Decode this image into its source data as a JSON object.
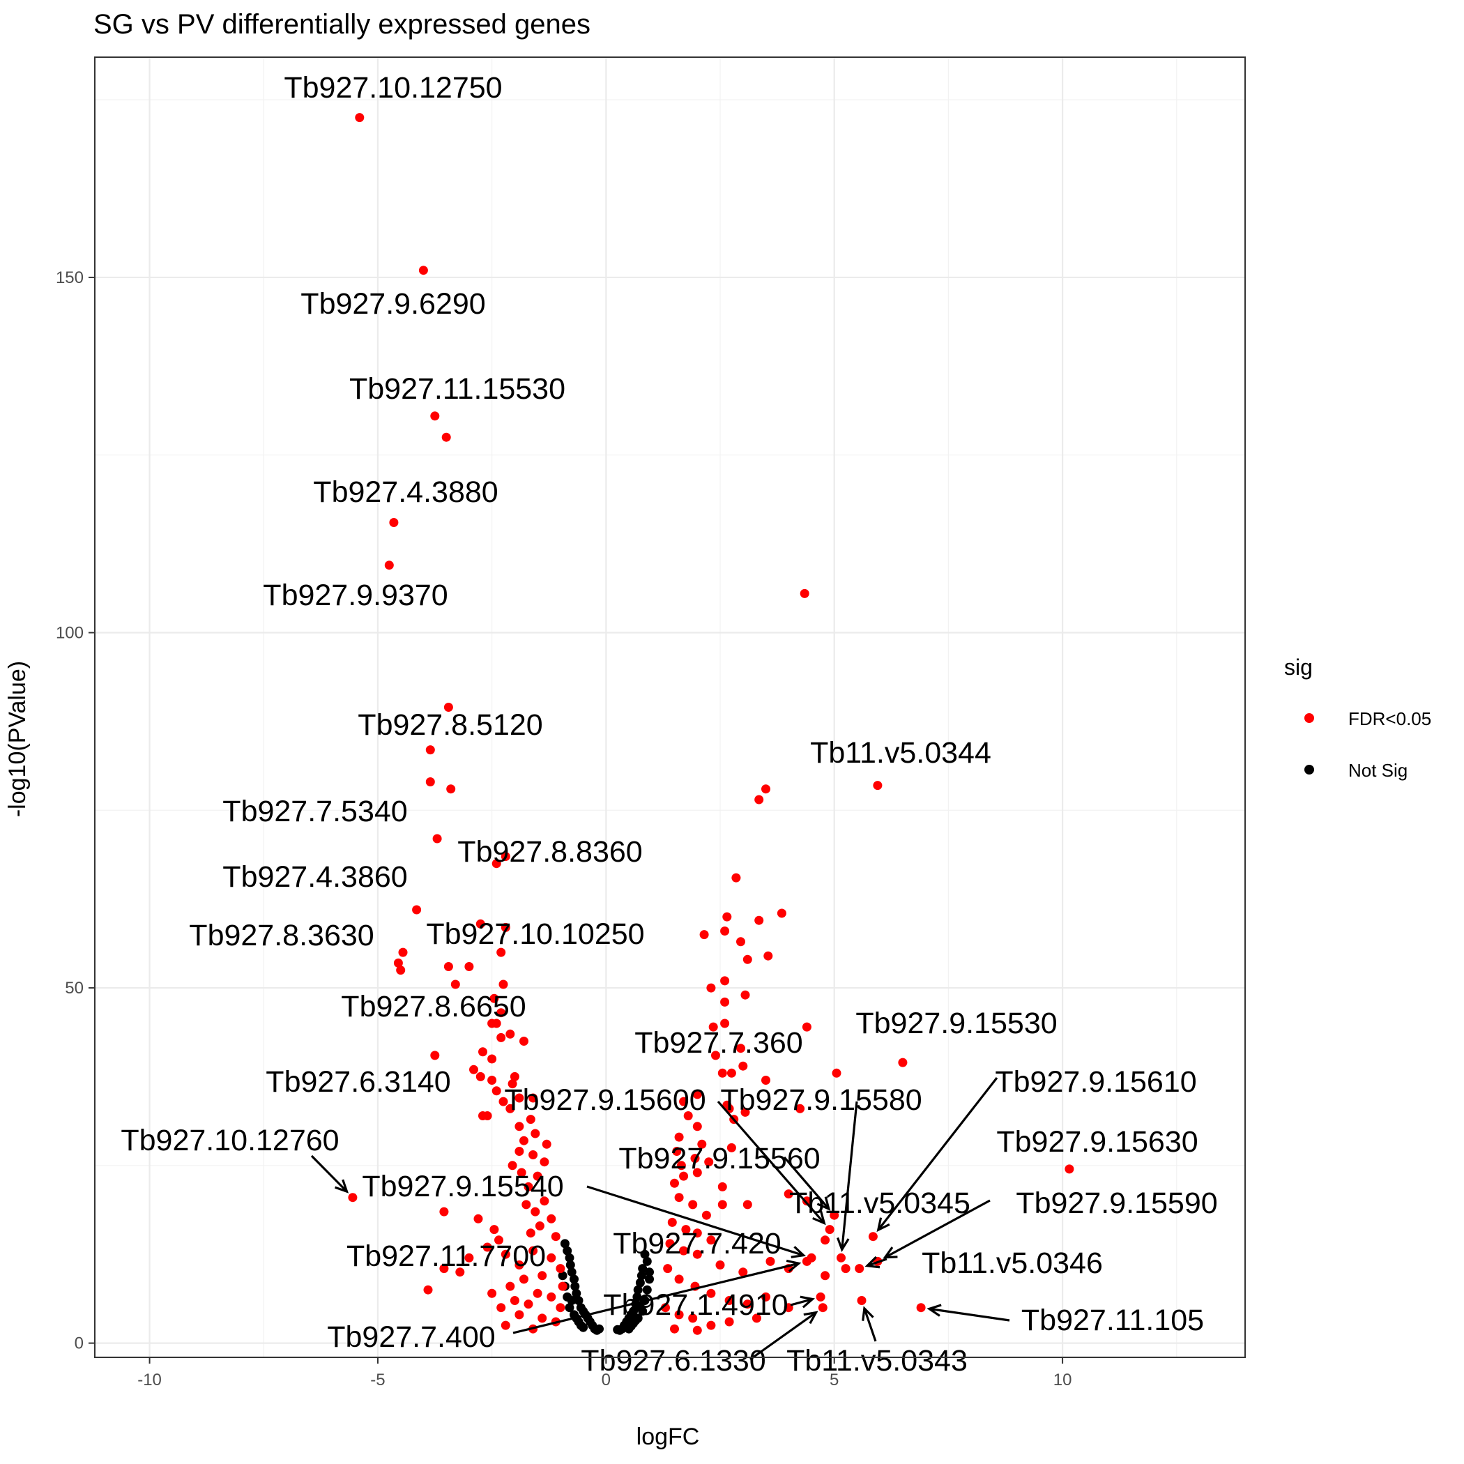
{
  "chart_data": {
    "type": "scatter",
    "title": "SG vs PV differentially expressed genes",
    "xlabel": "logFC",
    "ylabel": "-log10(PValue)",
    "xlim": [
      -11.2,
      14.0
    ],
    "ylim": [
      -2.0,
      181.0
    ],
    "xticks": [
      -10,
      -5,
      0,
      5,
      10
    ],
    "xtick_labels": [
      "-10",
      "-5",
      "0",
      "5",
      "10"
    ],
    "yticks": [
      0,
      50,
      100,
      150
    ],
    "ytick_labels": [
      "0",
      "50",
      "100",
      "150"
    ],
    "grid": true,
    "legend": {
      "title": "sig",
      "placement": "right",
      "entries": [
        {
          "label": "FDR<0.05",
          "color": "#ff0000"
        },
        {
          "label": "Not Sig",
          "color": "#000000"
        }
      ]
    },
    "colors": {
      "sig": "#ff0000",
      "notsig": "#000000"
    },
    "series": [
      {
        "name": "FDR<0.05",
        "color": "#ff0000",
        "points": [
          [
            -5.4,
            172.5
          ],
          [
            -4.0,
            151.0
          ],
          [
            -3.75,
            130.5
          ],
          [
            -3.5,
            127.5
          ],
          [
            -4.65,
            115.5
          ],
          [
            -4.75,
            109.5
          ],
          [
            4.35,
            105.5
          ],
          [
            -3.45,
            89.5
          ],
          [
            -3.85,
            83.5
          ],
          [
            -3.85,
            79.0
          ],
          [
            -3.4,
            78.0
          ],
          [
            5.95,
            78.5
          ],
          [
            3.5,
            78.0
          ],
          [
            3.35,
            76.5
          ],
          [
            -3.7,
            71.0
          ],
          [
            -2.4,
            67.5
          ],
          [
            -2.2,
            68.5
          ],
          [
            2.85,
            65.5
          ],
          [
            -4.15,
            61.0
          ],
          [
            3.85,
            60.5
          ],
          [
            2.65,
            60.0
          ],
          [
            2.6,
            58.0
          ],
          [
            3.35,
            59.5
          ],
          [
            -2.75,
            59.0
          ],
          [
            -2.2,
            58.5
          ],
          [
            2.15,
            57.5
          ],
          [
            2.95,
            56.5
          ],
          [
            -4.45,
            55.0
          ],
          [
            -4.55,
            53.5
          ],
          [
            -4.5,
            52.5
          ],
          [
            -3.45,
            53.0
          ],
          [
            -3.0,
            53.0
          ],
          [
            -2.3,
            55.0
          ],
          [
            3.1,
            54.0
          ],
          [
            3.55,
            54.5
          ],
          [
            2.6,
            51.0
          ],
          [
            2.3,
            50.0
          ],
          [
            3.05,
            49.0
          ],
          [
            -2.25,
            50.5
          ],
          [
            -3.3,
            50.5
          ],
          [
            -2.45,
            48.5
          ],
          [
            2.6,
            48.0
          ],
          [
            -2.3,
            46.5
          ],
          [
            -2.4,
            45.0
          ],
          [
            -2.5,
            45.0
          ],
          [
            2.6,
            45.0
          ],
          [
            2.35,
            44.5
          ],
          [
            4.4,
            44.5
          ],
          [
            -2.3,
            43.0
          ],
          [
            -2.1,
            43.5
          ],
          [
            -1.8,
            42.5
          ],
          [
            -2.7,
            41.0
          ],
          [
            -2.5,
            40.0
          ],
          [
            -3.75,
            40.5
          ],
          [
            2.95,
            41.5
          ],
          [
            2.4,
            40.5
          ],
          [
            3.0,
            39.0
          ],
          [
            6.5,
            39.5
          ],
          [
            2.55,
            38.0
          ],
          [
            2.75,
            38.0
          ],
          [
            -2.9,
            38.5
          ],
          [
            -2.75,
            37.5
          ],
          [
            -2.5,
            37.0
          ],
          [
            -2.0,
            37.5
          ],
          [
            -2.05,
            36.5
          ],
          [
            5.05,
            38.0
          ],
          [
            3.5,
            37.0
          ],
          [
            -2.4,
            35.5
          ],
          [
            -2.25,
            34.0
          ],
          [
            -1.6,
            34.5
          ],
          [
            -1.9,
            34.5
          ],
          [
            -2.1,
            33.0
          ],
          [
            2.7,
            33.0
          ],
          [
            -2.7,
            32.0
          ],
          [
            -2.6,
            32.0
          ],
          [
            2.8,
            31.5
          ],
          [
            3.05,
            32.5
          ],
          [
            4.25,
            33.0
          ],
          [
            2.0,
            35.0
          ],
          [
            1.7,
            34.0
          ],
          [
            2.65,
            33.5
          ],
          [
            -1.65,
            31.5
          ],
          [
            -1.9,
            30.5
          ],
          [
            -1.55,
            29.5
          ],
          [
            -1.8,
            28.5
          ],
          [
            -1.3,
            28.0
          ],
          [
            1.8,
            32.0
          ],
          [
            2.0,
            30.5
          ],
          [
            1.6,
            29.0
          ],
          [
            2.1,
            28.0
          ],
          [
            2.75,
            27.5
          ],
          [
            -1.9,
            27.0
          ],
          [
            -1.6,
            26.5
          ],
          [
            -1.35,
            25.5
          ],
          [
            -2.05,
            25.0
          ],
          [
            1.55,
            27.0
          ],
          [
            1.95,
            26.0
          ],
          [
            2.25,
            25.5
          ],
          [
            1.65,
            25.0
          ],
          [
            -1.85,
            24.0
          ],
          [
            -1.5,
            23.5
          ],
          [
            -1.7,
            22.0
          ],
          [
            10.15,
            24.5
          ],
          [
            1.7,
            23.5
          ],
          [
            2.0,
            24.0
          ],
          [
            1.5,
            22.5
          ],
          [
            2.55,
            22.0
          ],
          [
            2.55,
            19.5
          ],
          [
            3.1,
            19.5
          ],
          [
            -5.55,
            20.5
          ],
          [
            -3.55,
            18.5
          ],
          [
            -2.8,
            17.5
          ],
          [
            -2.45,
            16.0
          ],
          [
            -2.35,
            14.5
          ],
          [
            -1.75,
            19.5
          ],
          [
            -1.55,
            18.5
          ],
          [
            -1.35,
            20.0
          ],
          [
            -1.2,
            17.5
          ],
          [
            -1.45,
            16.5
          ],
          [
            -1.65,
            15.5
          ],
          [
            -1.1,
            15.0
          ],
          [
            4.0,
            21.0
          ],
          [
            4.4,
            20.0
          ],
          [
            4.9,
            16.0
          ],
          [
            4.8,
            14.5
          ],
          [
            5.0,
            18.0
          ],
          [
            5.85,
            15.0
          ],
          [
            1.6,
            20.5
          ],
          [
            1.9,
            19.5
          ],
          [
            2.2,
            18.0
          ],
          [
            1.45,
            17.0
          ],
          [
            1.75,
            16.0
          ],
          [
            2.0,
            15.5
          ],
          [
            2.3,
            14.5
          ],
          [
            -2.6,
            13.5
          ],
          [
            -3.55,
            10.5
          ],
          [
            -3.2,
            10.0
          ],
          [
            -3.0,
            12.0
          ],
          [
            -2.2,
            12.5
          ],
          [
            -1.9,
            11.0
          ],
          [
            -1.6,
            13.0
          ],
          [
            -1.2,
            12.0
          ],
          [
            -1.0,
            10.5
          ],
          [
            -1.4,
            9.5
          ],
          [
            -1.8,
            9.0
          ],
          [
            -2.1,
            8.0
          ],
          [
            4.5,
            12.0
          ],
          [
            5.15,
            12.0
          ],
          [
            5.25,
            10.5
          ],
          [
            5.55,
            10.5
          ],
          [
            5.95,
            11.5
          ],
          [
            4.4,
            11.5
          ],
          [
            4.8,
            9.5
          ],
          [
            1.4,
            14.0
          ],
          [
            1.7,
            13.0
          ],
          [
            2.0,
            12.5
          ],
          [
            2.5,
            11.0
          ],
          [
            3.0,
            10.0
          ],
          [
            3.6,
            11.5
          ],
          [
            4.0,
            10.5
          ],
          [
            -3.9,
            7.5
          ],
          [
            -2.5,
            7.0
          ],
          [
            -2.0,
            6.0
          ],
          [
            -1.5,
            7.0
          ],
          [
            -1.2,
            6.5
          ],
          [
            -0.95,
            8.0
          ],
          [
            -1.7,
            5.5
          ],
          [
            -2.3,
            5.0
          ],
          [
            -1.0,
            5.0
          ],
          [
            4.7,
            6.5
          ],
          [
            4.75,
            5.0
          ],
          [
            5.6,
            6.0
          ],
          [
            6.9,
            5.0
          ],
          [
            1.35,
            10.5
          ],
          [
            1.6,
            9.0
          ],
          [
            1.95,
            8.0
          ],
          [
            2.3,
            7.0
          ],
          [
            2.7,
            6.0
          ],
          [
            3.1,
            5.5
          ],
          [
            3.5,
            6.5
          ],
          [
            4.0,
            5.0
          ],
          [
            -1.9,
            4.0
          ],
          [
            -1.4,
            3.5
          ],
          [
            -1.1,
            3.0
          ],
          [
            -1.6,
            2.0
          ],
          [
            -2.2,
            2.5
          ],
          [
            1.3,
            5.0
          ],
          [
            1.6,
            4.0
          ],
          [
            1.9,
            3.5
          ],
          [
            2.3,
            2.5
          ],
          [
            2.7,
            3.0
          ],
          [
            3.3,
            3.5
          ],
          [
            1.5,
            2.0
          ],
          [
            2.0,
            1.8
          ]
        ]
      },
      {
        "name": "Not Sig",
        "color": "#000000",
        "points": [
          [
            -0.9,
            14.0
          ],
          [
            -0.85,
            13.0
          ],
          [
            -0.8,
            12.0
          ],
          [
            -0.78,
            11.0
          ],
          [
            -0.75,
            10.0
          ],
          [
            -0.7,
            9.0
          ],
          [
            -0.68,
            8.0
          ],
          [
            -0.65,
            7.0
          ],
          [
            -0.6,
            6.0
          ],
          [
            -0.55,
            5.0
          ],
          [
            -0.5,
            4.5
          ],
          [
            -0.45,
            4.0
          ],
          [
            -0.4,
            3.5
          ],
          [
            -0.35,
            3.0
          ],
          [
            -0.3,
            2.5
          ],
          [
            -0.25,
            2.0
          ],
          [
            -0.2,
            1.8
          ],
          [
            -0.5,
            2.2
          ],
          [
            -0.6,
            3.0
          ],
          [
            -0.7,
            4.0
          ],
          [
            -0.8,
            5.0
          ],
          [
            -0.85,
            6.5
          ],
          [
            -0.9,
            8.0
          ],
          [
            -0.95,
            9.5
          ],
          [
            -0.75,
            6.0
          ],
          [
            -0.65,
            3.5
          ],
          [
            -0.55,
            2.5
          ],
          [
            0.85,
            12.5
          ],
          [
            0.9,
            11.5
          ],
          [
            0.8,
            10.5
          ],
          [
            0.78,
            9.5
          ],
          [
            0.75,
            8.5
          ],
          [
            0.7,
            7.5
          ],
          [
            0.68,
            6.5
          ],
          [
            0.65,
            5.5
          ],
          [
            0.6,
            4.5
          ],
          [
            0.55,
            4.0
          ],
          [
            0.5,
            3.5
          ],
          [
            0.45,
            3.0
          ],
          [
            0.4,
            2.5
          ],
          [
            0.35,
            2.0
          ],
          [
            0.3,
            1.8
          ],
          [
            0.5,
            2.0
          ],
          [
            0.6,
            2.8
          ],
          [
            0.7,
            3.5
          ],
          [
            0.8,
            4.5
          ],
          [
            0.85,
            6.0
          ],
          [
            0.9,
            7.5
          ],
          [
            0.95,
            9.0
          ],
          [
            0.75,
            5.0
          ],
          [
            0.65,
            3.2
          ],
          [
            0.55,
            2.4
          ],
          [
            0.25,
            1.9
          ],
          [
            -0.15,
            2.0
          ],
          [
            0.95,
            10.0
          ]
        ]
      }
    ],
    "annotations": [
      {
        "text": "Tb927.10.12750",
        "x": -5.4,
        "y": 172.5
      },
      {
        "text": "Tb927.9.6290",
        "x": -4.0,
        "y": 151.0
      },
      {
        "text": "Tb927.11.15530",
        "x": -3.75,
        "y": 130.5
      },
      {
        "text": "Tb927.4.3880",
        "x": -4.65,
        "y": 115.5
      },
      {
        "text": "Tb927.9.9370",
        "x": -4.75,
        "y": 109.5
      },
      {
        "text": "Tb927.8.5120",
        "x": -3.45,
        "y": 89.5
      },
      {
        "text": "Tb11.v5.0344",
        "x": 5.95,
        "y": 78.5
      },
      {
        "text": "Tb927.7.5340",
        "x": -3.7,
        "y": 71.0
      },
      {
        "text": "Tb927.8.8360",
        "x": -2.4,
        "y": 67.5
      },
      {
        "text": "Tb927.4.3860",
        "x": -4.15,
        "y": 61.0
      },
      {
        "text": "Tb927.8.3630",
        "x": -4.45,
        "y": 55.0
      },
      {
        "text": "Tb927.10.10250",
        "x": -2.3,
        "y": 55.0
      },
      {
        "text": "Tb927.8.6650",
        "x": -3.75,
        "y": 40.5
      },
      {
        "text": "Tb927.9.15530",
        "x": 6.5,
        "y": 39.5
      },
      {
        "text": "Tb927.7.360",
        "x": 2.6,
        "y": 45.0
      },
      {
        "text": "Tb927.6.3140",
        "x": -2.75,
        "y": 37.5
      },
      {
        "text": "Tb927.9.15600",
        "x": 4.9,
        "y": 16.0
      },
      {
        "text": "Tb927.9.15580",
        "x": 5.15,
        "y": 12.0
      },
      {
        "text": "Tb927.9.15610",
        "x": 5.85,
        "y": 15.0
      },
      {
        "text": "Tb927.10.12760",
        "x": -5.55,
        "y": 20.5
      },
      {
        "text": "Tb927.9.15630",
        "x": 10.15,
        "y": 24.5
      },
      {
        "text": "Tb927.9.15560",
        "x": 5.0,
        "y": 18.0
      },
      {
        "text": "Tb927.9.15540",
        "x": 4.5,
        "y": 12.0
      },
      {
        "text": "Tb11.v5.0345",
        "x": 5.25,
        "y": 10.5
      },
      {
        "text": "Tb927.9.15590",
        "x": 5.95,
        "y": 11.5
      },
      {
        "text": "Tb927.11.7700",
        "x": -1.0,
        "y": 10.5
      },
      {
        "text": "Tb927.7.420",
        "x": 4.8,
        "y": 9.5
      },
      {
        "text": "Tb11.v5.0346",
        "x": 5.55,
        "y": 10.5
      },
      {
        "text": "Tb927.1.4910",
        "x": 4.7,
        "y": 6.5
      },
      {
        "text": "Tb927.7.400",
        "x": 4.4,
        "y": 11.5
      },
      {
        "text": "Tb927.6.1330",
        "x": 4.75,
        "y": 5.0
      },
      {
        "text": "Tb11.v5.0343",
        "x": 5.6,
        "y": 6.0
      },
      {
        "text": "Tb927.11.105",
        "x": 6.9,
        "y": 5.0
      }
    ]
  }
}
